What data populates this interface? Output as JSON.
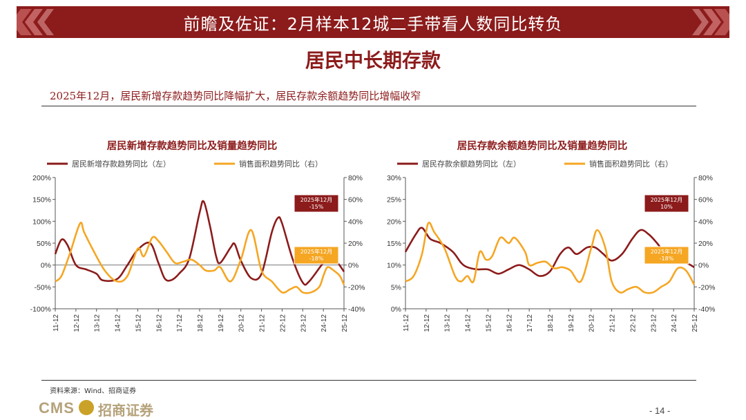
{
  "header": {
    "banner_title": "前瞻及佐证：2月样本12城二手带看人数同比转负",
    "subtitle": "居民中长期存款",
    "summary": "2025年12月，居民新增存款趋势同比降幅扩大，居民存款余额趋势同比增幅收窄"
  },
  "footer": {
    "source": "资料来源：Wind、招商证券",
    "logo_latin": "CMS",
    "logo_chinese": "招商证券",
    "page_number": "- 14 -"
  },
  "colors": {
    "primary": "#8c1b1b",
    "secondary": "#f5a623",
    "banner": "#8c1b1b"
  },
  "chart_data": [
    {
      "type": "line",
      "title": "居民新增存款趋势同比及销量趋势同比",
      "categories": [
        "11-12",
        "12-12",
        "13-12",
        "14-12",
        "15-12",
        "16-12",
        "17-12",
        "18-12",
        "19-12",
        "20-12",
        "21-12",
        "22-12",
        "23-12",
        "24-12",
        "25-12"
      ],
      "y_left": {
        "ticks": [
          "200%",
          "150%",
          "100%",
          "50%",
          "0%",
          "-50%",
          "-100%"
        ],
        "range": [
          -100,
          200
        ]
      },
      "y_right": {
        "ticks": [
          "80%",
          "60%",
          "40%",
          "20%",
          "0%",
          "-20%",
          "-40%"
        ],
        "range": [
          -40,
          80
        ]
      },
      "series": [
        {
          "name": "居民新增存款趋势同比（左）",
          "axis": "left",
          "color": "#8c1b1b",
          "points": [
            [
              0,
              25
            ],
            [
              0.3,
              58
            ],
            [
              0.6,
              45
            ],
            [
              1,
              0
            ],
            [
              1.5,
              -10
            ],
            [
              2,
              -20
            ],
            [
              2.3,
              -35
            ],
            [
              3,
              -32
            ],
            [
              3.5,
              0
            ],
            [
              4,
              35
            ],
            [
              4.6,
              50
            ],
            [
              5,
              5
            ],
            [
              5.3,
              -30
            ],
            [
              5.6,
              -35
            ],
            [
              6,
              -20
            ],
            [
              6.5,
              15
            ],
            [
              7,
              120
            ],
            [
              7.2,
              145
            ],
            [
              7.5,
              90
            ],
            [
              7.8,
              20
            ],
            [
              8,
              5
            ],
            [
              8.5,
              40
            ],
            [
              8.7,
              48
            ],
            [
              9,
              10
            ],
            [
              9.5,
              -30
            ],
            [
              10,
              -20
            ],
            [
              10.5,
              75
            ],
            [
              10.8,
              108
            ],
            [
              11,
              95
            ],
            [
              11.5,
              15
            ],
            [
              12,
              -40
            ],
            [
              12.3,
              -38
            ],
            [
              13,
              5
            ],
            [
              13.4,
              20
            ],
            [
              13.7,
              5
            ],
            [
              14,
              -15
            ]
          ]
        },
        {
          "name": "销售面积趋势同比（右）",
          "axis": "right",
          "color": "#f5a623",
          "points": [
            [
              0,
              -15
            ],
            [
              0.3,
              -10
            ],
            [
              0.7,
              10
            ],
            [
              1.2,
              38
            ],
            [
              1.4,
              30
            ],
            [
              1.8,
              15
            ],
            [
              2.4,
              -5
            ],
            [
              3,
              -15
            ],
            [
              3.5,
              -10
            ],
            [
              4,
              15
            ],
            [
              4.3,
              8
            ],
            [
              4.7,
              25
            ],
            [
              5,
              22
            ],
            [
              5.4,
              12
            ],
            [
              5.8,
              2
            ],
            [
              6.2,
              3
            ],
            [
              6.6,
              5
            ],
            [
              7,
              0
            ],
            [
              7.3,
              -5
            ],
            [
              7.7,
              -5
            ],
            [
              8,
              -2
            ],
            [
              8.5,
              -15
            ],
            [
              9,
              5
            ],
            [
              9.5,
              32
            ],
            [
              10,
              -5
            ],
            [
              10.5,
              -15
            ],
            [
              11,
              -25
            ],
            [
              11.4,
              -22
            ],
            [
              11.7,
              -20
            ],
            [
              12,
              -25
            ],
            [
              12.4,
              -25
            ],
            [
              12.8,
              -20
            ],
            [
              13,
              -10
            ],
            [
              13.2,
              -2
            ],
            [
              13.5,
              -5
            ],
            [
              13.8,
              -10
            ],
            [
              14,
              -18
            ]
          ]
        }
      ],
      "callouts": [
        {
          "series": "居民新增存款趋势同比（左）",
          "label": "2025年12月\n-15%"
        },
        {
          "series": "销售面积趋势同比（右）",
          "label": "2025年12月\n-18%"
        }
      ]
    },
    {
      "type": "line",
      "title": "居民存款余额趋势同比及销量趋势同比",
      "categories": [
        "11-12",
        "12-12",
        "13-12",
        "14-12",
        "15-12",
        "16-12",
        "17-12",
        "18-12",
        "19-12",
        "20-12",
        "21-12",
        "22-12",
        "23-12",
        "24-12",
        "25-12"
      ],
      "y_left": {
        "ticks": [
          "30%",
          "25%",
          "20%",
          "15%",
          "10%",
          "5%",
          "0%"
        ],
        "range": [
          0,
          30
        ]
      },
      "y_right": {
        "ticks": [
          "80%",
          "60%",
          "40%",
          "20%",
          "0%",
          "-20%",
          "-40%"
        ],
        "range": [
          -40,
          80
        ]
      },
      "series": [
        {
          "name": "居民存款余额趋势同比（左）",
          "axis": "left",
          "color": "#8c1b1b",
          "points": [
            [
              0,
              13
            ],
            [
              0.5,
              17
            ],
            [
              0.8,
              18.5
            ],
            [
              1.2,
              16
            ],
            [
              1.7,
              15
            ],
            [
              2.3,
              13
            ],
            [
              2.7,
              10.5
            ],
            [
              3,
              9.5
            ],
            [
              3.5,
              9
            ],
            [
              4,
              9
            ],
            [
              4.5,
              8
            ],
            [
              5,
              9
            ],
            [
              5.5,
              10
            ],
            [
              6,
              9
            ],
            [
              6.5,
              7.5
            ],
            [
              7,
              8.5
            ],
            [
              7.5,
              12.5
            ],
            [
              7.9,
              14
            ],
            [
              8.3,
              12.5
            ],
            [
              8.8,
              14
            ],
            [
              9.2,
              14
            ],
            [
              9.6,
              12.5
            ],
            [
              10,
              11
            ],
            [
              10.5,
              12.5
            ],
            [
              11,
              16
            ],
            [
              11.4,
              18
            ],
            [
              11.8,
              17
            ],
            [
              12.2,
              15
            ],
            [
              12.6,
              12.5
            ],
            [
              13,
              11
            ],
            [
              13.6,
              10.5
            ],
            [
              14,
              9.5
            ]
          ]
        },
        {
          "name": "销售面积趋势同比（右）",
          "axis": "right",
          "color": "#f5a623",
          "points": [
            [
              0,
              -15
            ],
            [
              0.4,
              -10
            ],
            [
              0.8,
              10
            ],
            [
              1.1,
              38
            ],
            [
              1.4,
              30
            ],
            [
              1.9,
              15
            ],
            [
              2.4,
              -10
            ],
            [
              2.7,
              -15
            ],
            [
              3,
              -10
            ],
            [
              3.3,
              -15
            ],
            [
              3.6,
              12
            ],
            [
              3.9,
              5
            ],
            [
              4.2,
              8
            ],
            [
              4.6,
              25
            ],
            [
              5,
              20
            ],
            [
              5.3,
              25
            ],
            [
              5.8,
              12
            ],
            [
              6,
              0
            ],
            [
              6.4,
              2
            ],
            [
              6.8,
              3
            ],
            [
              7.2,
              -3
            ],
            [
              7.6,
              -2
            ],
            [
              8,
              -5
            ],
            [
              8.5,
              -15
            ],
            [
              9,
              15
            ],
            [
              9.3,
              32
            ],
            [
              9.7,
              15
            ],
            [
              10,
              -15
            ],
            [
              10.4,
              -25
            ],
            [
              10.8,
              -22
            ],
            [
              11.2,
              -20
            ],
            [
              11.6,
              -25
            ],
            [
              12,
              -25
            ],
            [
              12.4,
              -20
            ],
            [
              12.8,
              -15
            ],
            [
              13.2,
              -3
            ],
            [
              13.6,
              -5
            ],
            [
              14,
              -18
            ]
          ]
        }
      ],
      "callouts": [
        {
          "series": "居民存款余额趋势同比（左）",
          "label": "2025年12月\n10%"
        },
        {
          "series": "销售面积趋势同比（右）",
          "label": "2025年12月\n-18%"
        }
      ]
    }
  ]
}
